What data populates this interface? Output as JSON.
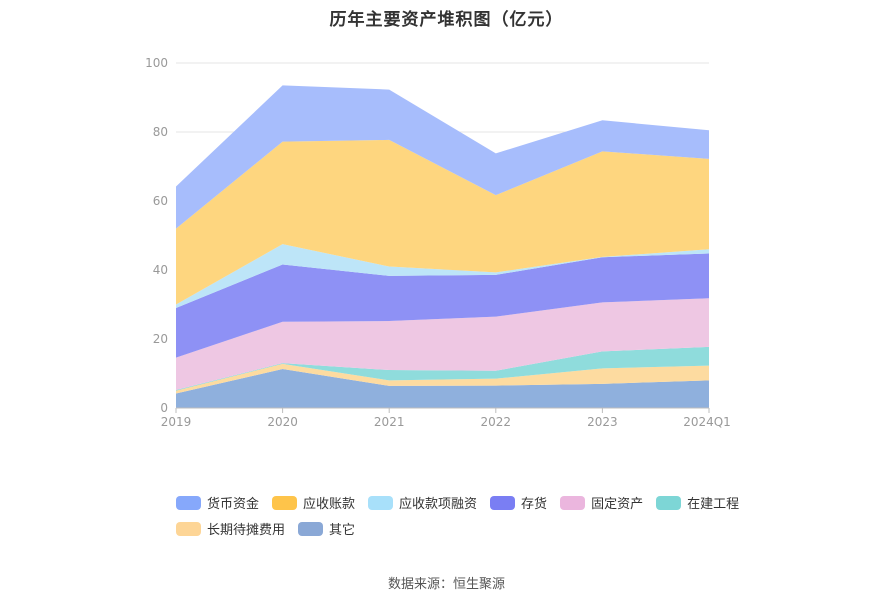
{
  "title": "历年主要资产堆积图（亿元）",
  "source": "数据来源：恒生聚源",
  "chart_data": {
    "type": "area",
    "stacked": true,
    "categories": [
      "2019",
      "2020",
      "2021",
      "2022",
      "2023",
      "2024Q1"
    ],
    "ylim": [
      0,
      100
    ],
    "yticks": [
      0,
      20,
      40,
      60,
      80,
      100
    ],
    "grid": true,
    "legend_position": "bottom",
    "series": [
      {
        "name": "其它",
        "color": "#8fb0dd",
        "values": [
          4.2,
          11.3,
          6.4,
          6.5,
          7.0,
          8.0
        ]
      },
      {
        "name": "长期待摊费用",
        "color": "#fddba0",
        "values": [
          0.8,
          1.5,
          1.6,
          2.0,
          4.5,
          4.3
        ]
      },
      {
        "name": "在建工程",
        "color": "#8fdcdc",
        "values": [
          0.2,
          0.2,
          3.0,
          2.3,
          4.9,
          5.4
        ]
      },
      {
        "name": "固定资产",
        "color": "#eec7e3",
        "values": [
          9.4,
          12.0,
          14.2,
          15.7,
          14.2,
          14.1
        ]
      },
      {
        "name": "存货",
        "color": "#8e91f5",
        "values": [
          14.4,
          16.6,
          13.1,
          12.1,
          13.1,
          13.0
        ]
      },
      {
        "name": "应收款项融资",
        "color": "#bde5f8",
        "values": [
          1.0,
          5.9,
          2.7,
          0.7,
          0.1,
          1.2
        ]
      },
      {
        "name": "应收账款",
        "color": "#fed67f",
        "values": [
          22.0,
          29.7,
          36.7,
          22.4,
          30.6,
          26.2
        ]
      },
      {
        "name": "货币资金",
        "color": "#a7bdfc",
        "values": [
          12.2,
          16.3,
          14.6,
          12.1,
          9.0,
          8.3
        ]
      }
    ]
  },
  "legend": [
    {
      "label": "货币资金",
      "color": "#86a8fb"
    },
    {
      "label": "应收账款",
      "color": "#fec44a"
    },
    {
      "label": "应收款项融资",
      "color": "#a8e0fa"
    },
    {
      "label": "存货",
      "color": "#7a7ef3"
    },
    {
      "label": "固定资产",
      "color": "#ebb6de"
    },
    {
      "label": "在建工程",
      "color": "#7dd6d6"
    },
    {
      "label": "长期待摊费用",
      "color": "#fdd596"
    },
    {
      "label": "其它",
      "color": "#8aa8d6"
    }
  ]
}
